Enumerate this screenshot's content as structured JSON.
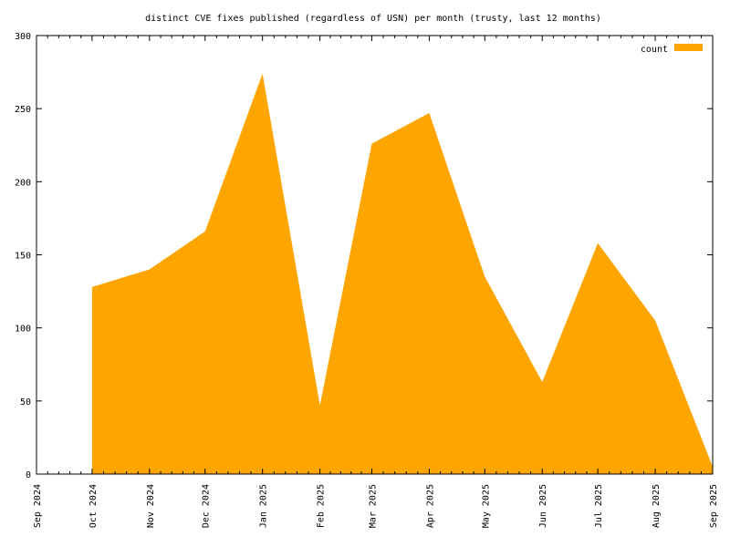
{
  "chart_data": {
    "type": "area",
    "title": "distinct CVE fixes published (regardless of USN) per month (trusty, last 12 months)",
    "xlabel": "",
    "ylabel": "",
    "x_ticks": [
      "Sep 2024",
      "Oct 2024",
      "Nov 2024",
      "Dec 2024",
      "Jan 2025",
      "Feb 2025",
      "Mar 2025",
      "Apr 2025",
      "May 2025",
      "Jun 2025",
      "Jul 2025",
      "Aug 2025",
      "Sep 2025"
    ],
    "ylim": [
      0,
      300
    ],
    "y_ticks": [
      0,
      50,
      100,
      150,
      200,
      250,
      300
    ],
    "grid": false,
    "legend_position": "top-right",
    "series": [
      {
        "name": "count",
        "color": "#ffa500",
        "x": [
          "2024-10-01",
          "2024-11-01",
          "2024-12-01",
          "2025-01-01",
          "2025-02-01",
          "2025-03-01",
          "2025-04-01",
          "2025-05-01",
          "2025-06-01",
          "2025-07-01",
          "2025-08-01",
          "2025-09-01"
        ],
        "values": [
          128,
          140,
          166,
          274,
          47,
          226,
          247,
          135,
          63,
          158,
          105,
          5
        ]
      }
    ]
  }
}
